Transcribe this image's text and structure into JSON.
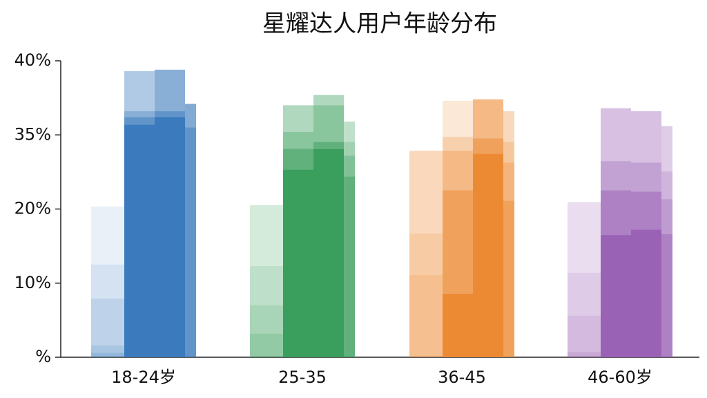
{
  "chart_data": {
    "type": "layered-bar",
    "title": "星耀达人用户年龄分布",
    "categories": [
      "18-24岁",
      "25-35",
      "36-45",
      "46-60岁"
    ],
    "colors": [
      "#3a7abd",
      "#3a9e5c",
      "#ec8a33",
      "#9a62b5"
    ],
    "values": [
      [
        [
          0.6,
          1.0,
          6.3,
          4.6,
          8.0
        ],
        [
          35.7,
          0.5,
          0.4,
          2.7
        ],
        [
          36.2,
          0.4,
          2.8
        ],
        [
          35.5,
          1.6
        ]
      ],
      [
        [
          3.2,
          3.8,
          5.3,
          8.5
        ],
        [
          28.0,
          4.2,
          3.0,
          1.8
        ],
        [
          32.2,
          1.4,
          3.4,
          0.7
        ],
        [
          26.6,
          4.2,
          2.8,
          2.3
        ]
      ],
      [
        [
          11.1,
          5.6,
          15.1
        ],
        [
          8.6,
          15.2,
          8.0,
          2.8,
          2.7
        ],
        [
          31.2,
          3.1,
          3.1
        ],
        [
          21.7,
          7.7,
          4.2,
          3.0
        ]
      ],
      [
        [
          0.7,
          4.9,
          5.8,
          10.0
        ],
        [
          16.5,
          7.3,
          5.9,
          7.1
        ],
        [
          17.2,
          6.3,
          5.9,
          7.2
        ],
        [
          16.6,
          5.4,
          5.6,
          8.0
        ]
      ]
    ],
    "ylim": [
      0,
      40
    ],
    "yticks": [
      {
        "value": 0,
        "label": "%"
      },
      {
        "value": 10,
        "label": "10%"
      },
      {
        "value": 20,
        "label": "20%"
      },
      {
        "value": 35,
        "label": "35%"
      },
      {
        "value": 40,
        "label": "40%"
      }
    ]
  }
}
